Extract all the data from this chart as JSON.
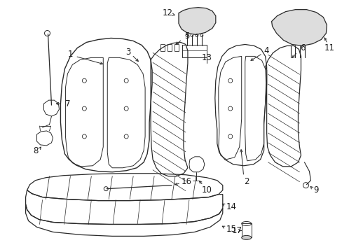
{
  "background_color": "#ffffff",
  "line_color": "#2a2a2a",
  "text_color": "#1a1a1a",
  "fig_width": 4.89,
  "fig_height": 3.6,
  "dpi": 100
}
